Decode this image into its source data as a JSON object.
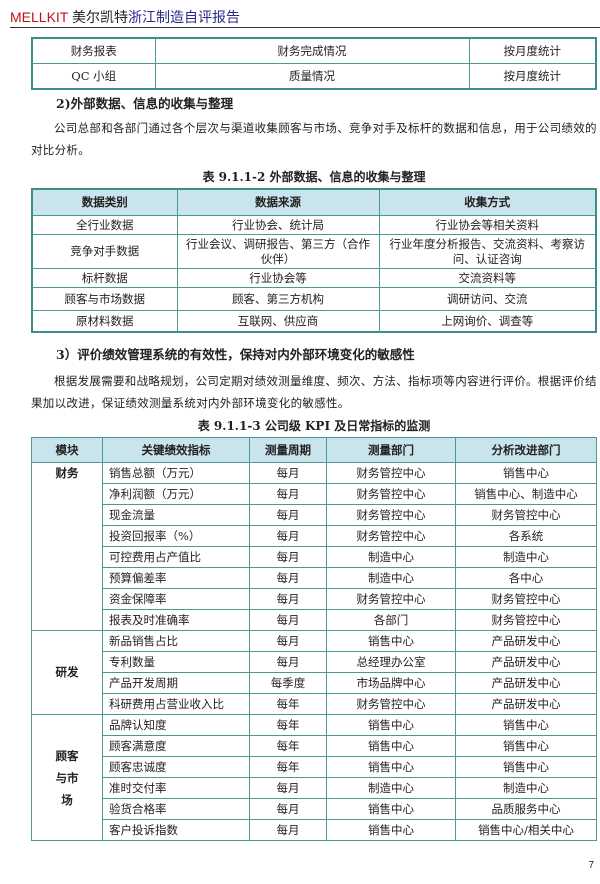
{
  "header": {
    "brand": "MELLKIT",
    "title_a": "美尔凯特",
    "title_b": "浙江制造自评报告"
  },
  "table1": {
    "rows": [
      [
        "财务报表",
        "财务完成情况",
        "按月度统计"
      ],
      [
        "QC 小组",
        "质量情况",
        "按月度统计"
      ]
    ]
  },
  "section2": {
    "heading": "2)外部数据、信息的收集与整理",
    "paragraph": "公司总部和各部门通过各个层次与渠道收集顾客与市场、竞争对手及标杆的数据和信息，用于公司绩效的对比分析。"
  },
  "table2": {
    "caption": "表 9.1.1-2 外部数据、信息的收集与整理",
    "headers": [
      "数据类别",
      "数据来源",
      "收集方式"
    ],
    "rows": [
      [
        "全行业数据",
        "行业协会、统计局",
        "行业协会等相关资料"
      ],
      [
        "竞争对手数据",
        "行业会议、调研报告、第三方（合作伙伴）",
        "行业年度分析报告、交流资料、考察访问、认证咨询"
      ],
      [
        "标杆数据",
        "行业协会等",
        "交流资料等"
      ],
      [
        "顾客与市场数据",
        "顾客、第三方机构",
        "调研访问、交流"
      ],
      [
        "原材料数据",
        "互联网、供应商",
        "上网询价、调查等"
      ]
    ]
  },
  "section3": {
    "heading": "3）评价绩效管理系统的有效性，保持对内外部环境变化的敏感性",
    "paragraph": "根据发展需要和战略规划，公司定期对绩效测量维度、频次、方法、指标项等内容进行评价。根据评价结果加以改进，保证绩效测量系统对内外部环境变化的敏感性。"
  },
  "table3": {
    "caption": "表 9.1.1-3 公司级 KPI 及日常指标的监测",
    "headers": [
      "模块",
      "关键绩效指标",
      "测量周期",
      "测量部门",
      "分析改进部门"
    ],
    "modules": [
      "财务",
      "研发",
      "顾客与市场"
    ],
    "rows": [
      [
        "销售总额（万元）",
        "每月",
        "财务管控中心",
        "销售中心"
      ],
      [
        "净利润额（万元）",
        "每月",
        "财务管控中心",
        "销售中心、制造中心"
      ],
      [
        "现金流量",
        "每月",
        "财务管控中心",
        "财务管控中心"
      ],
      [
        "投资回报率（%）",
        "每月",
        "财务管控中心",
        "各系统"
      ],
      [
        "可控费用占产值比",
        "每月",
        "制造中心",
        "制造中心"
      ],
      [
        "预算偏差率",
        "每月",
        "制造中心",
        "各中心"
      ],
      [
        "资金保障率",
        "每月",
        "财务管控中心",
        "财务管控中心"
      ],
      [
        "报表及时准确率",
        "每月",
        "各部门",
        "财务管控中心"
      ],
      [
        "新品销售占比",
        "每月",
        "销售中心",
        "产品研发中心"
      ],
      [
        "专利数量",
        "每月",
        "总经理办公室",
        "产品研发中心"
      ],
      [
        "产品开发周期",
        "每季度",
        "市场品牌中心",
        "产品研发中心"
      ],
      [
        "科研费用占营业收入比",
        "每年",
        "财务管控中心",
        "产品研发中心"
      ],
      [
        "品牌认知度",
        "每年",
        "销售中心",
        "销售中心"
      ],
      [
        "顾客满意度",
        "每年",
        "销售中心",
        "销售中心"
      ],
      [
        "顾客忠诚度",
        "每年",
        "销售中心",
        "销售中心"
      ],
      [
        "准时交付率",
        "每月",
        "制造中心",
        "制造中心"
      ],
      [
        "验货合格率",
        "每月",
        "销售中心",
        "品质服务中心"
      ],
      [
        "客户投诉指数",
        "每月",
        "销售中心",
        "销售中心/相关中心"
      ]
    ]
  },
  "page_number": "7"
}
